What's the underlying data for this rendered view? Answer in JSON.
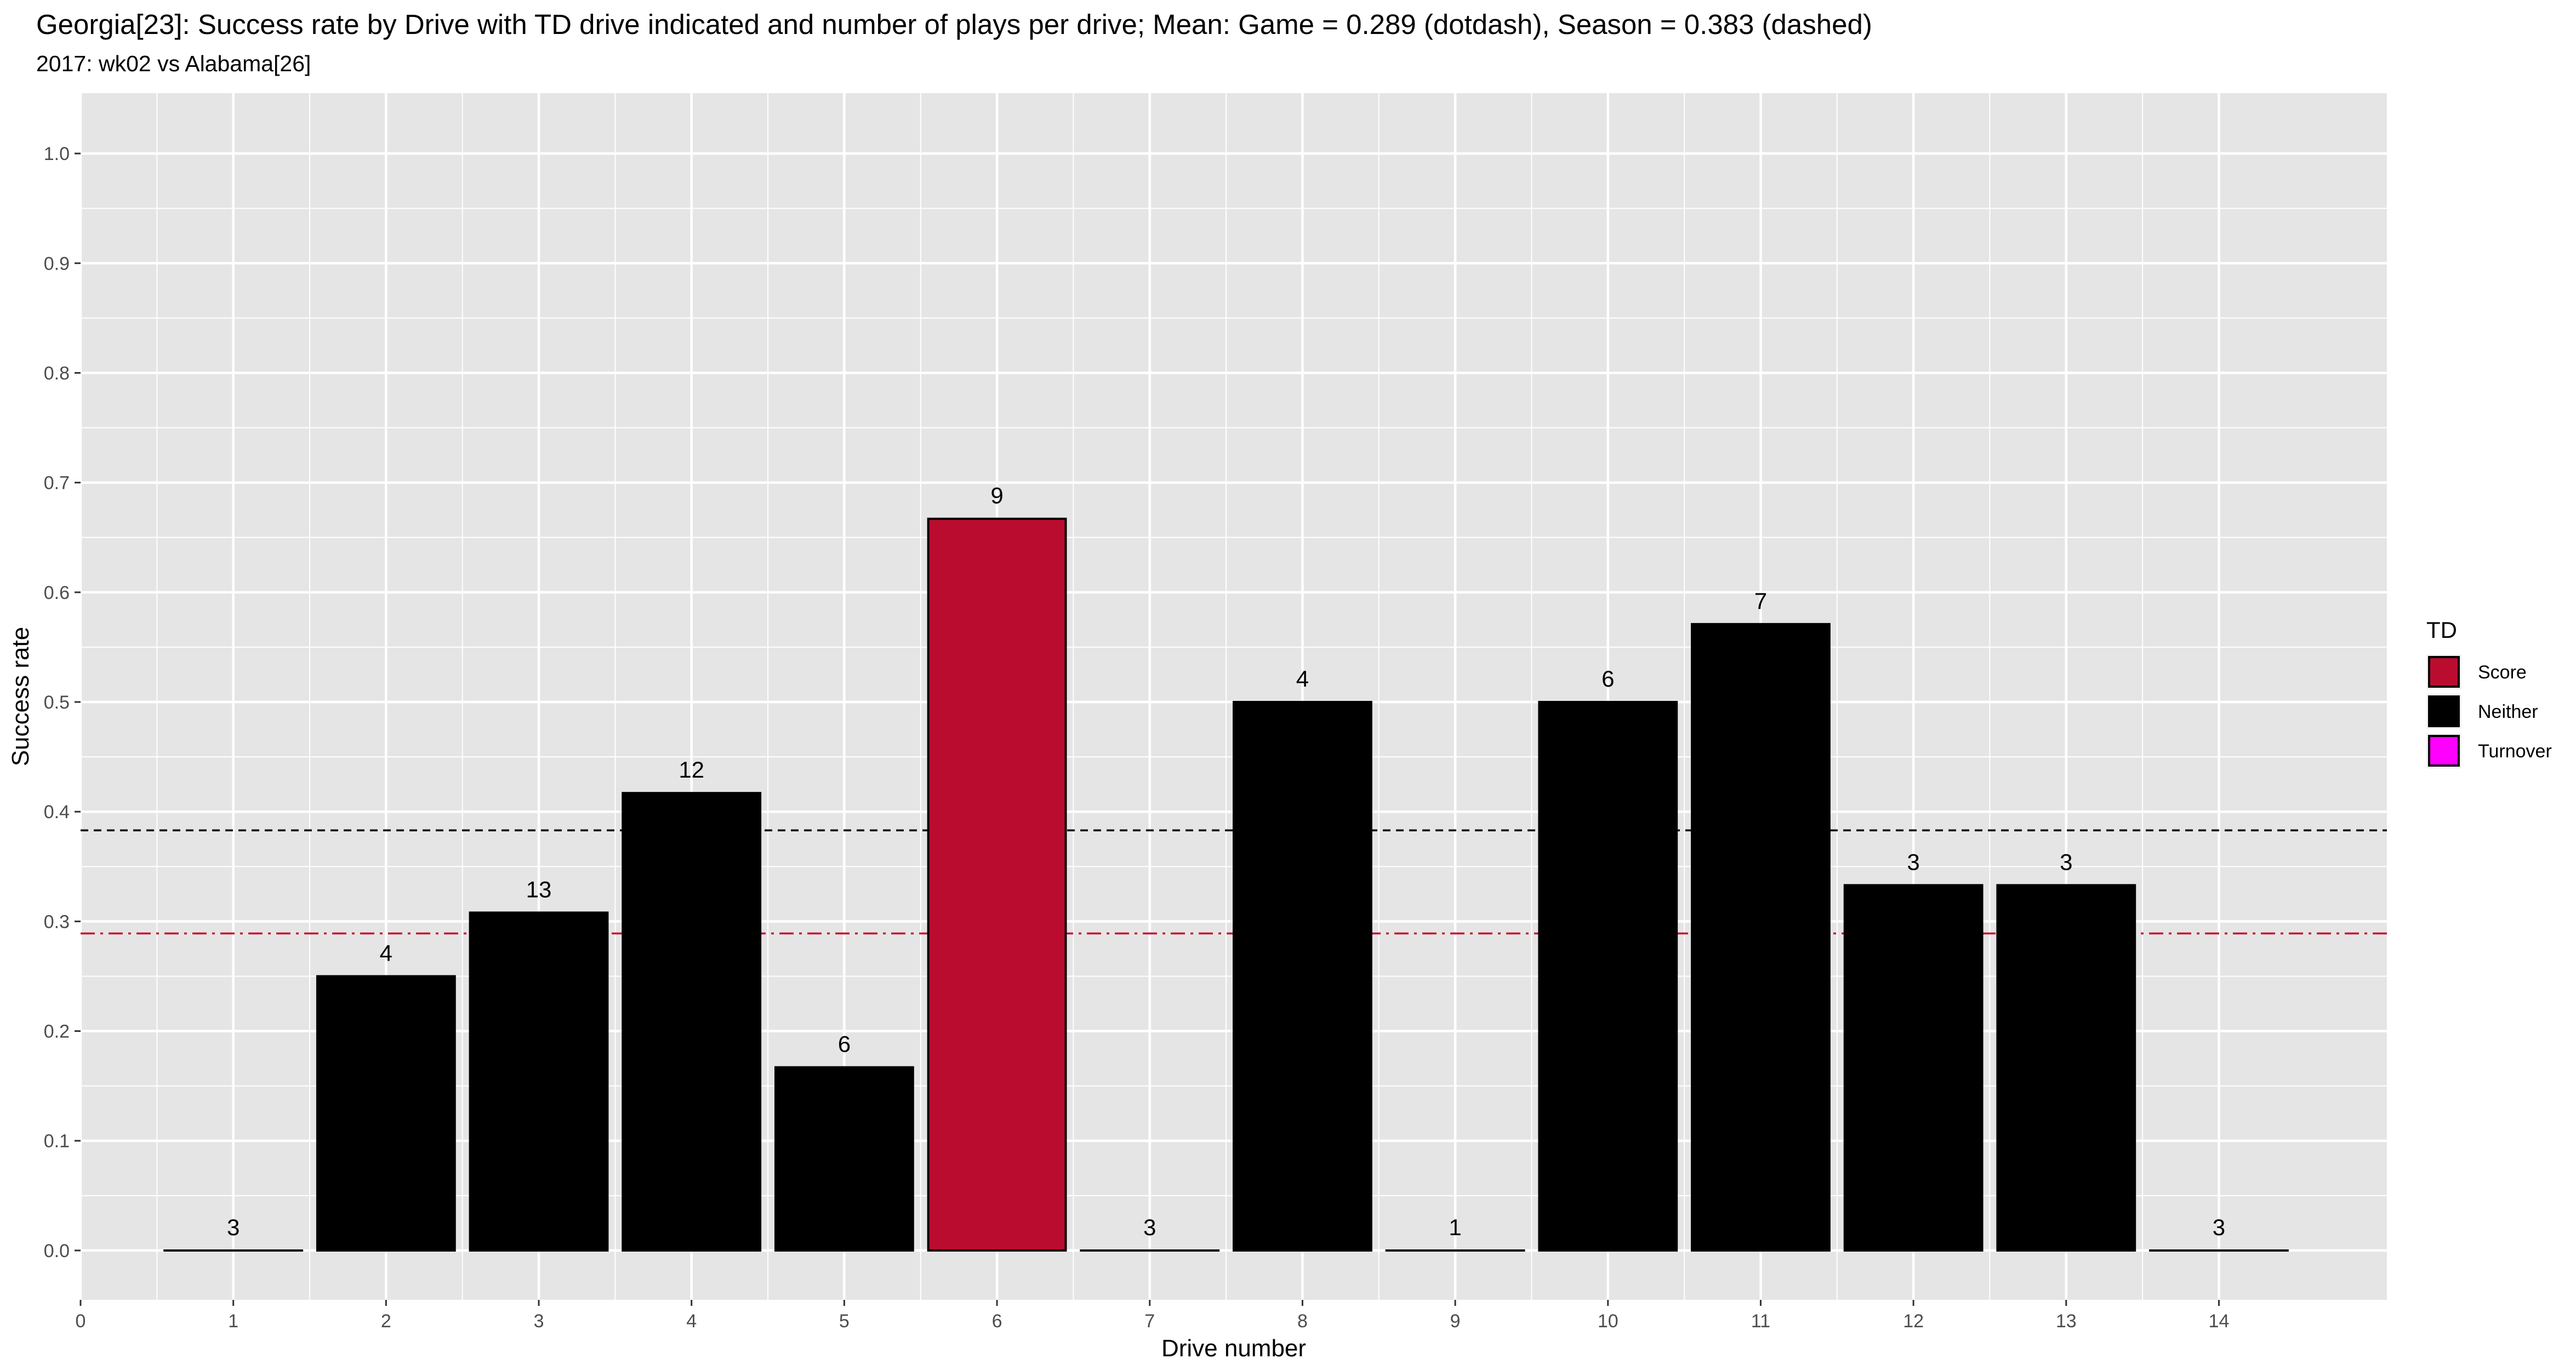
{
  "chart_data": {
    "type": "bar",
    "title": "Georgia[23]: Success rate by Drive with TD drive indicated and number of plays per drive; Mean: Game = 0.289 (dotdash), Season = 0.383 (dashed)",
    "subtitle": "2017: wk02 vs Alabama[26]",
    "xlabel": "Drive number",
    "ylabel": "Success rate",
    "xlim": [
      0,
      15.1
    ],
    "ylim": [
      -0.045,
      1.055
    ],
    "x_ticks": [
      0,
      1,
      2,
      3,
      4,
      5,
      6,
      7,
      8,
      9,
      10,
      11,
      12,
      13,
      14
    ],
    "y_ticks": [
      0.0,
      0.1,
      0.2,
      0.3,
      0.4,
      0.5,
      0.6,
      0.7,
      0.8,
      0.9,
      1.0
    ],
    "y_tick_labels": [
      "0.0",
      "0.1",
      "0.2",
      "0.3",
      "0.4",
      "0.5",
      "0.6",
      "0.7",
      "0.8",
      "0.9",
      "1.0"
    ],
    "grid": true,
    "drives": [
      {
        "drive": 1,
        "success_rate": 0.0,
        "plays": 3,
        "td": "Neither"
      },
      {
        "drive": 2,
        "success_rate": 0.25,
        "plays": 4,
        "td": "Neither"
      },
      {
        "drive": 3,
        "success_rate": 0.308,
        "plays": 13,
        "td": "Neither"
      },
      {
        "drive": 4,
        "success_rate": 0.417,
        "plays": 12,
        "td": "Neither"
      },
      {
        "drive": 5,
        "success_rate": 0.167,
        "plays": 6,
        "td": "Neither"
      },
      {
        "drive": 6,
        "success_rate": 0.667,
        "plays": 9,
        "td": "Score"
      },
      {
        "drive": 7,
        "success_rate": 0.0,
        "plays": 3,
        "td": "Neither"
      },
      {
        "drive": 8,
        "success_rate": 0.5,
        "plays": 4,
        "td": "Neither"
      },
      {
        "drive": 9,
        "success_rate": 0.0,
        "plays": 1,
        "td": "Neither"
      },
      {
        "drive": 10,
        "success_rate": 0.5,
        "plays": 6,
        "td": "Neither"
      },
      {
        "drive": 11,
        "success_rate": 0.571,
        "plays": 7,
        "td": "Neither"
      },
      {
        "drive": 12,
        "success_rate": 0.333,
        "plays": 3,
        "td": "Neither"
      },
      {
        "drive": 13,
        "success_rate": 0.333,
        "plays": 3,
        "td": "Neither"
      },
      {
        "drive": 14,
        "success_rate": 0.0,
        "plays": 3,
        "td": "Neither"
      }
    ],
    "reference_lines": [
      {
        "name": "Game mean",
        "value": 0.289,
        "style": "dotdash",
        "color": "#c8102e"
      },
      {
        "name": "Season mean",
        "value": 0.383,
        "style": "dashed",
        "color": "#000000"
      }
    ],
    "legend": {
      "title": "TD",
      "position": "right",
      "entries": [
        {
          "label": "Score",
          "color": "#ba0c2f"
        },
        {
          "label": "Neither",
          "color": "#000000"
        },
        {
          "label": "Turnover",
          "color": "#ff00ff"
        }
      ]
    },
    "colors": {
      "panel_background": "#e5e5e5",
      "grid_line": "#ffffff",
      "bar_outline": "#000000"
    }
  }
}
